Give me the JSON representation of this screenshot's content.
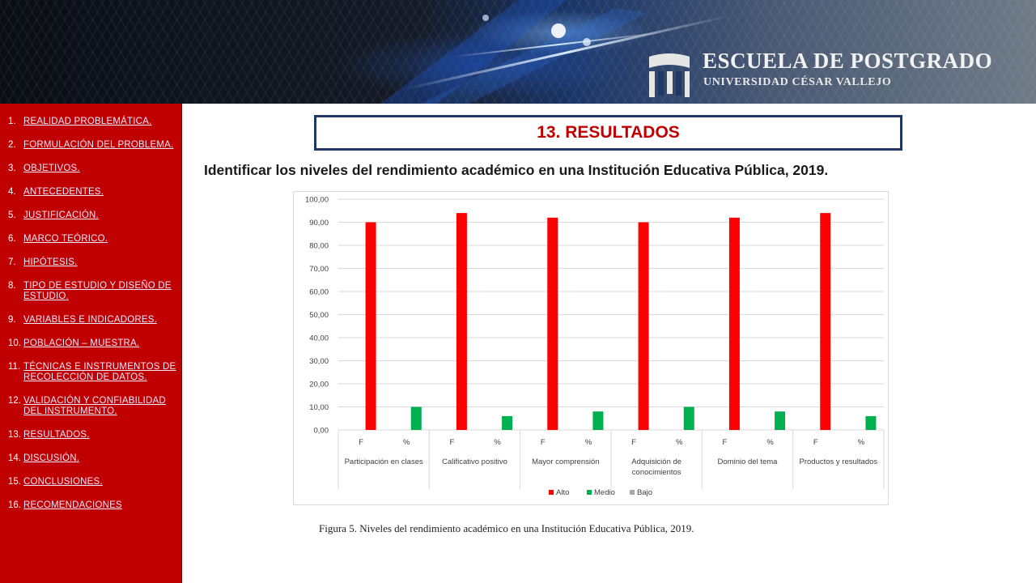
{
  "header": {
    "brand_title": "ESCUELA DE POSTGRADO",
    "brand_subtitle": "UNIVERSIDAD CÉSAR VALLEJO",
    "logo_icon": "shield-stripes-icon"
  },
  "sidebar": {
    "items": [
      {
        "num": "1.",
        "label": "REALIDAD PROBLEMÁTICA."
      },
      {
        "num": "2.",
        "label": "FORMULACIÓN DEL PROBLEMA."
      },
      {
        "num": "3.",
        "label": "OBJETIVOS."
      },
      {
        "num": "4.",
        "label": "ANTECEDENTES."
      },
      {
        "num": "5.",
        "label": "JUSTIFICACIÓN."
      },
      {
        "num": "6.",
        "label": "MARCO TEÓRICO."
      },
      {
        "num": "7.",
        "label": "HIPÓTESIS."
      },
      {
        "num": "8.",
        "label": "TIPO DE ESTUDIO Y DISEÑO DE ESTUDIO."
      },
      {
        "num": "9.",
        "label": "VARIABLES E INDICADORES."
      },
      {
        "num": "10.",
        "label": "POBLACIÓN – MUESTRA."
      },
      {
        "num": "11.",
        "label": "TÉCNICAS E INSTRUMENTOS DE RECOLECCIÓN DE DATOS."
      },
      {
        "num": "12.",
        "label": "VALIDACIÓN Y CONFIABILIDAD DEL INSTRUMENTO."
      },
      {
        "num": "13.",
        "label": "RESULTADOS."
      },
      {
        "num": "14.",
        "label": "DISCUSIÓN."
      },
      {
        "num": "15.",
        "label": "CONCLUSIONES."
      },
      {
        "num": "16.",
        "label": "RECOMENDACIONES"
      }
    ]
  },
  "slide": {
    "title": "13. RESULTADOS",
    "subtitle": "Identificar los niveles del rendimiento académico en una Institución Educativa Pública, 2019.",
    "caption": "Figura 5. Niveles del rendimiento académico en una Institución Educativa Pública, 2019."
  },
  "chart_data": {
    "type": "bar",
    "title": "",
    "xlabel": "",
    "ylabel": "",
    "ylim": [
      0,
      100
    ],
    "y_ticks": [
      "0,00",
      "10,00",
      "20,00",
      "30,00",
      "40,00",
      "50,00",
      "60,00",
      "70,00",
      "80,00",
      "90,00",
      "100,00"
    ],
    "grid": true,
    "legend_position": "bottom",
    "sub_categories": [
      "F",
      "%"
    ],
    "groups": [
      {
        "label": "Participación en clases",
        "label_lines": [
          "Participación en clases"
        ]
      },
      {
        "label": "Calificativo positivo",
        "label_lines": [
          "Calificativo positivo"
        ]
      },
      {
        "label": "Mayor comprensión",
        "label_lines": [
          "Mayor comprensión"
        ]
      },
      {
        "label": "Adquisición de conocimientos",
        "label_lines": [
          "Adquisición de",
          "conocimientos"
        ]
      },
      {
        "label": "Dominio del tema",
        "label_lines": [
          "Dominio del tema"
        ]
      },
      {
        "label": "Productos y resultados",
        "label_lines": [
          "Productos y resultados"
        ]
      }
    ],
    "series": [
      {
        "name": "Alto",
        "color": "#ff0000",
        "values": [
          90,
          94,
          92,
          90,
          92,
          94
        ]
      },
      {
        "name": "Medio",
        "color": "#00b050",
        "values": [
          10,
          6,
          8,
          10,
          8,
          6
        ]
      },
      {
        "name": "Bajo",
        "color": "#a6a6a6",
        "values": [
          0,
          0,
          0,
          0,
          0,
          0
        ]
      }
    ]
  }
}
